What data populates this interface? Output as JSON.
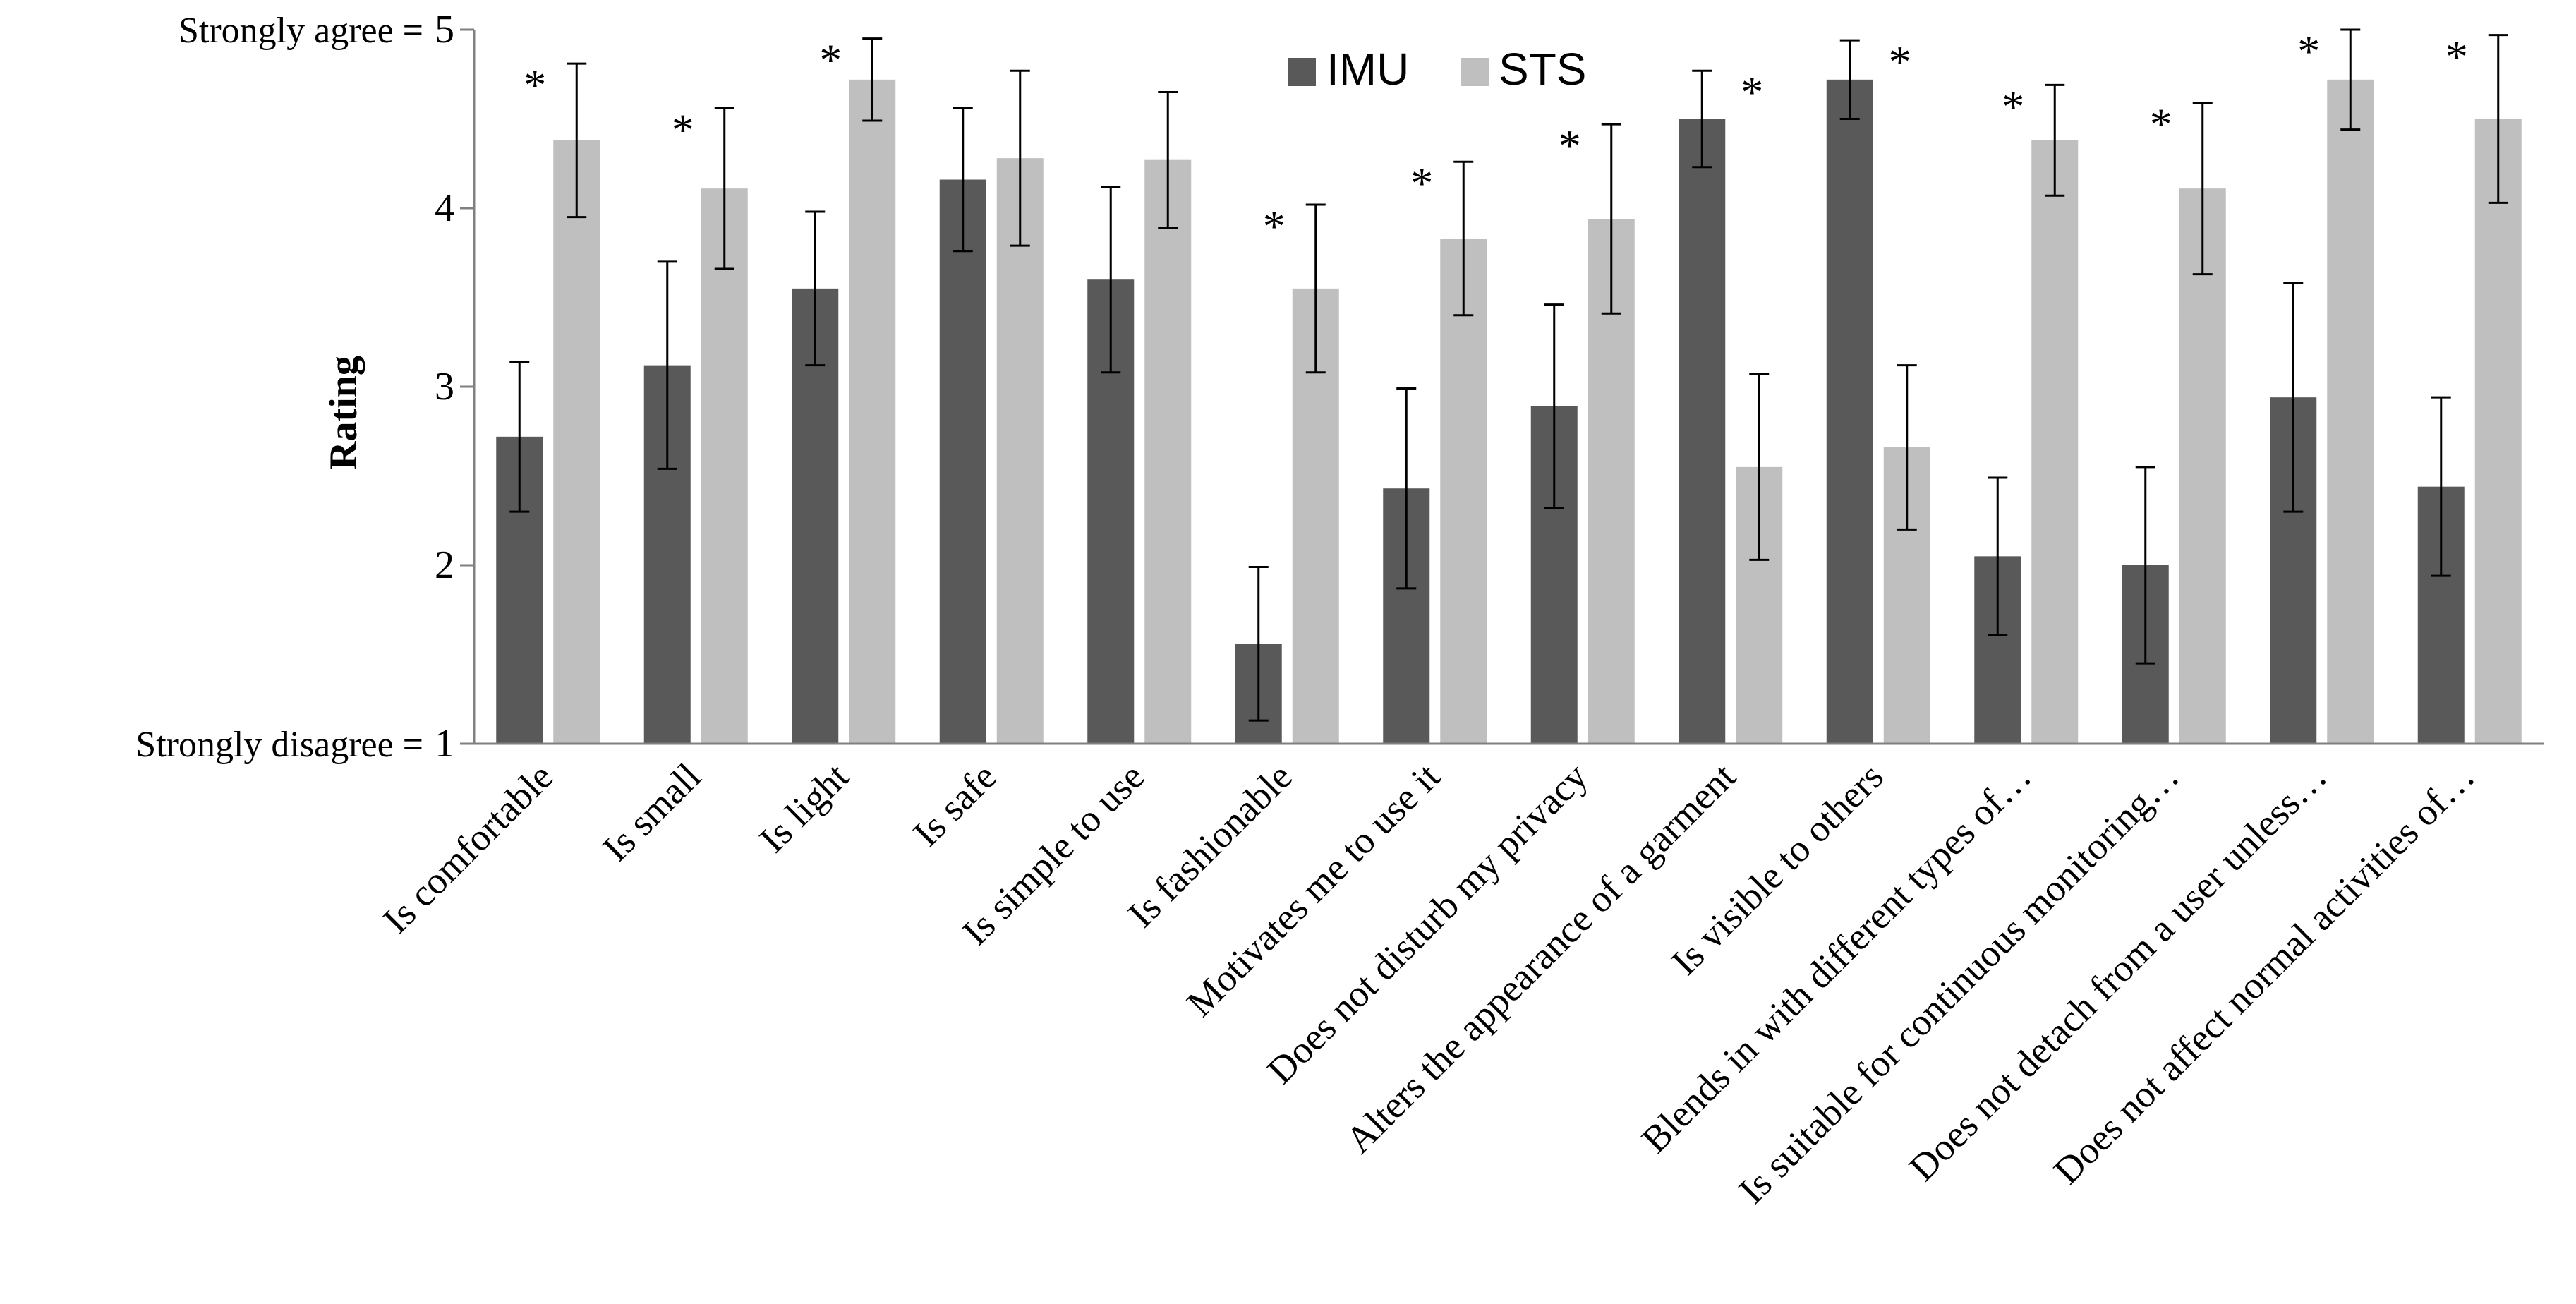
{
  "chart_data": {
    "type": "bar",
    "title": "",
    "xlabel": "",
    "ylabel": "Rating",
    "ylim": [
      1,
      5
    ],
    "yticks": [
      1,
      2,
      3,
      4,
      5
    ],
    "ytick_prefix": {
      "5": "Strongly agree = ",
      "1": "Strongly disagree = "
    },
    "grid": false,
    "legend_position": "top-center",
    "categories": [
      "Is comfortable",
      "Is small",
      "Is light",
      "Is safe",
      "Is simple to use",
      "Is fashionable",
      "Motivates me to use it",
      "Does not disturb my privacy",
      "Alters the appearance of a garment",
      "Is visible to others",
      "Blends in with different types of…",
      "Is suitable for continuous monitoring…",
      "Does not detach from a user unless…",
      "Does not affect normal activities of…"
    ],
    "series": [
      {
        "name": "IMU",
        "color": "#595959",
        "values": [
          2.72,
          3.12,
          3.55,
          4.16,
          3.6,
          1.56,
          2.43,
          2.89,
          4.5,
          4.72,
          2.05,
          2.0,
          2.94,
          2.44
        ],
        "errors": [
          0.42,
          0.58,
          0.43,
          0.4,
          0.52,
          0.43,
          0.56,
          0.57,
          0.27,
          0.22,
          0.44,
          0.55,
          0.64,
          0.5
        ]
      },
      {
        "name": "STS",
        "color": "#bfbfbf",
        "values": [
          4.38,
          4.11,
          4.72,
          4.28,
          4.27,
          3.55,
          3.83,
          3.94,
          2.55,
          2.66,
          4.38,
          4.11,
          4.72,
          4.5
        ],
        "errors": [
          0.43,
          0.45,
          0.23,
          0.49,
          0.38,
          0.47,
          0.43,
          0.53,
          0.52,
          0.46,
          0.31,
          0.48,
          0.28,
          0.47
        ]
      }
    ],
    "significance": [
      {
        "category": "Is comfortable",
        "marker": "*",
        "above": "STS"
      },
      {
        "category": "Is small",
        "marker": "*",
        "above": "STS"
      },
      {
        "category": "Is light",
        "marker": "*",
        "above": "STS"
      },
      {
        "category": "Is fashionable",
        "marker": "*",
        "above": "STS"
      },
      {
        "category": "Motivates me to use it",
        "marker": "*",
        "above": "STS"
      },
      {
        "category": "Does not disturb my privacy",
        "marker": "*",
        "above": "STS"
      },
      {
        "category": "Alters the appearance of a garment",
        "marker": "*",
        "above": "IMU"
      },
      {
        "category": "Is visible to others",
        "marker": "*",
        "above": "IMU"
      },
      {
        "category": "Blends in with different types of…",
        "marker": "*",
        "above": "STS"
      },
      {
        "category": "Is suitable for continuous monitoring…",
        "marker": "*",
        "above": "STS"
      },
      {
        "category": "Does not detach from a user unless…",
        "marker": "*",
        "above": "STS"
      },
      {
        "category": "Does not affect normal activities of…",
        "marker": "*",
        "above": "STS"
      }
    ]
  }
}
